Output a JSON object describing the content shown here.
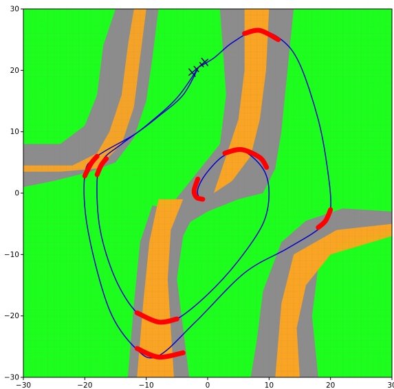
{
  "chart_data": {
    "type": "line",
    "title": "",
    "xlabel": "",
    "ylabel": "",
    "xlim": [
      -30,
      30
    ],
    "ylim": [
      -30,
      30
    ],
    "xticks": [
      "−30",
      "−20",
      "−10",
      "0",
      "10",
      "20",
      "30"
    ],
    "yticks": [
      "−30",
      "−20",
      "−10",
      "0",
      "10",
      "20",
      "30"
    ],
    "grid": false,
    "legend": "none",
    "colors": {
      "background_field": "#1cff1c",
      "boundary_band": "#8c8c8c",
      "high_region": "#ffa51c",
      "trajectory": "#0000cc",
      "highlight_segments": "#ff0000",
      "vehicle_marker": "#0a0a6e"
    },
    "series": [
      {
        "values": [
          [
            -1.5,
            20.5
          ],
          [
            1.0,
            22.0
          ],
          [
            4.0,
            24.5
          ],
          [
            8.0,
            26.5
          ],
          [
            12.0,
            25.0
          ],
          [
            15.0,
            21.0
          ],
          [
            18.0,
            12.0
          ],
          [
            19.5,
            4.0
          ],
          [
            20.0,
            -2.5
          ],
          [
            18.5,
            -5.5
          ],
          [
            13.0,
            -9.0
          ],
          [
            6.0,
            -13.0
          ],
          [
            -2.0,
            -21.0
          ],
          [
            -8.0,
            -26.5
          ],
          [
            -11.5,
            -25.5
          ],
          [
            -16.0,
            -19.0
          ],
          [
            -19.5,
            -6.0
          ],
          [
            -20.0,
            3.0
          ],
          [
            -18.0,
            6.0
          ],
          [
            -12.0,
            9.5
          ],
          [
            -8.0,
            12.5
          ],
          [
            -4.0,
            16.0
          ],
          [
            -1.5,
            20.5
          ]
        ]
      },
      {
        "values": [
          [
            -1.5,
            20.5
          ],
          [
            -5.0,
            15.5
          ],
          [
            -10.0,
            11.0
          ],
          [
            -14.0,
            8.0
          ],
          [
            -17.0,
            5.5
          ],
          [
            -18.0,
            2.0
          ],
          [
            -17.5,
            -6.0
          ],
          [
            -15.0,
            -14.0
          ],
          [
            -11.5,
            -19.5
          ],
          [
            -8.0,
            -21.0
          ],
          [
            -5.0,
            -20.5
          ],
          [
            0.0,
            -16.5
          ],
          [
            5.0,
            -11.0
          ],
          [
            9.0,
            -5.0
          ],
          [
            10.0,
            0.0
          ],
          [
            9.0,
            4.0
          ],
          [
            5.5,
            7.0
          ],
          [
            2.5,
            6.0
          ],
          [
            0.0,
            3.5
          ],
          [
            -1.5,
            1.0
          ],
          [
            -1.5,
            -0.5
          ],
          [
            -0.5,
            -1.0
          ]
        ]
      }
    ],
    "highlight_segments": [
      [
        [
          6.0,
          26.0
        ],
        [
          8.5,
          26.5
        ],
        [
          11.5,
          25.0
        ]
      ],
      [
        [
          -20.0,
          2.8
        ],
        [
          -19.0,
          4.8
        ],
        [
          -18.0,
          6.0
        ]
      ],
      [
        [
          -18.0,
          3.0
        ],
        [
          -17.3,
          4.6
        ],
        [
          -16.5,
          5.6
        ]
      ],
      [
        [
          2.8,
          6.5
        ],
        [
          5.5,
          7.1
        ],
        [
          8.5,
          5.8
        ],
        [
          9.6,
          4.2
        ]
      ],
      [
        [
          -1.6,
          2.3
        ],
        [
          -2.2,
          0.4
        ],
        [
          -1.8,
          -0.7
        ],
        [
          -0.8,
          -1.0
        ]
      ],
      [
        [
          20.0,
          -2.7
        ],
        [
          19.2,
          -4.5
        ],
        [
          18.0,
          -5.6
        ]
      ],
      [
        [
          -11.5,
          -19.5
        ],
        [
          -8.0,
          -21.0
        ],
        [
          -5.0,
          -20.5
        ]
      ],
      [
        [
          -11.5,
          -25.3
        ],
        [
          -8.0,
          -26.7
        ],
        [
          -4.0,
          -26.0
        ]
      ]
    ],
    "vehicle_marker": {
      "x": -1.5,
      "y": 20.5,
      "heading_deg": 40
    }
  }
}
